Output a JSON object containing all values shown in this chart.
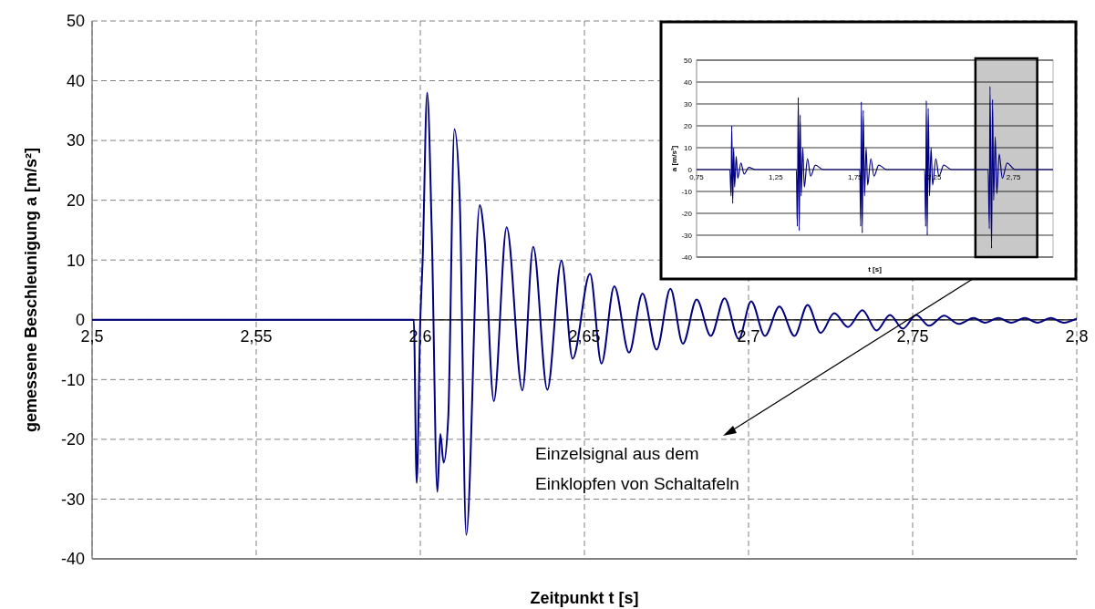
{
  "chart_data": [
    {
      "type": "line",
      "xlabel": "Zeitpunkt t [s]",
      "ylabel": "gemessene Beschleunigung a [m/s²]",
      "xlim": [
        2.5,
        2.8
      ],
      "xticks": [
        {
          "value": 2.5,
          "label": "2,5"
        },
        {
          "value": 2.55,
          "label": "2,55"
        },
        {
          "value": 2.6,
          "label": "2,6"
        },
        {
          "value": 2.65,
          "label": "2,65"
        },
        {
          "value": 2.7,
          "label": "2,7"
        },
        {
          "value": 2.75,
          "label": "2,75"
        },
        {
          "value": 2.8,
          "label": "2,8"
        }
      ],
      "ylim": [
        -40,
        50
      ],
      "yticks": [
        -40,
        -30,
        -20,
        -10,
        0,
        10,
        20,
        30,
        40,
        50
      ],
      "grid": true,
      "annotations": [
        "Einzelsignal aus dem\nEinklopfen von Schaltafeln"
      ],
      "series": [
        {
          "color": "#000080",
          "x": [
            2.5,
            2.598,
            2.5989,
            2.6,
            2.6007,
            2.6021,
            2.6035,
            2.6052,
            2.6061,
            2.6071,
            2.6085,
            2.6104,
            2.612,
            2.614,
            2.6181,
            2.6195,
            2.6224,
            2.6263,
            2.6311,
            2.6344,
            2.6387,
            2.643,
            2.6464,
            2.6517,
            2.6552,
            2.6591,
            2.6636,
            2.6677,
            2.672,
            2.6762,
            2.68,
            2.6842,
            2.6885,
            2.6927,
            2.697,
            2.7008,
            2.705,
            2.7094,
            2.714,
            2.718,
            2.722,
            2.7261,
            2.7303,
            2.7347,
            2.739,
            2.7431,
            2.747,
            2.7511,
            2.755,
            2.7596,
            2.764,
            2.7686,
            2.772,
            2.7761,
            2.78,
            2.7842,
            2.788,
            2.7921,
            2.796,
            2.8
          ],
          "values": [
            0,
            0,
            -27.3,
            0,
            9.8,
            38,
            14.5,
            -28.8,
            -19.1,
            -23.9,
            -16.5,
            31.9,
            20.3,
            -36,
            19.2,
            14,
            -13.6,
            15.5,
            -11.8,
            12.2,
            -11.7,
            9.9,
            -6.5,
            7.7,
            -7.3,
            5.6,
            -5.5,
            4.4,
            -5,
            5.2,
            -4,
            3.4,
            -2.7,
            3.6,
            -3.2,
            3.1,
            -2.7,
            2.2,
            -2.7,
            2.5,
            -2.2,
            1.1,
            -1.2,
            1.6,
            -1.8,
            0.8,
            -1.5,
            0.8,
            -1,
            0.7,
            -0.7,
            0.3,
            -0.5,
            0.3,
            -0.5,
            0.3,
            -0.5,
            0.3,
            -0.5,
            0.2
          ]
        }
      ]
    },
    {
      "type": "line",
      "xlabel": "t [s]",
      "ylabel": "a [m/s²]",
      "xlim": [
        0.75,
        3.0
      ],
      "xticks": [
        {
          "value": 0.75,
          "label": "0,75"
        },
        {
          "value": 1.25,
          "label": "1,25"
        },
        {
          "value": 1.75,
          "label": "1,75"
        },
        {
          "value": 2.25,
          "label": "2,25"
        },
        {
          "value": 2.75,
          "label": "2,75"
        }
      ],
      "ylim": [
        -40,
        50
      ],
      "yticks": [
        -40,
        -30,
        -20,
        -10,
        0,
        10,
        20,
        30,
        40,
        50
      ],
      "grid": "y",
      "bands": [
        {
          "axis": "x",
          "from": 2.51,
          "to": 2.9,
          "color": "#c8c8c8"
        }
      ],
      "series": [
        {
          "color": "#000080",
          "x": [
            0.75,
            0.96,
            0.968,
            0.972,
            0.978,
            0.984,
            0.99,
            1.0,
            1.01,
            1.03,
            1.05,
            1.08,
            1.12,
            1.38,
            1.386,
            1.392,
            1.398,
            1.404,
            1.41,
            1.42,
            1.43,
            1.45,
            1.47,
            1.5,
            1.55,
            1.78,
            1.786,
            1.79,
            1.796,
            1.802,
            1.81,
            1.82,
            1.83,
            1.85,
            1.87,
            1.9,
            1.95,
            2.19,
            2.196,
            2.2,
            2.206,
            2.212,
            2.22,
            2.23,
            2.24,
            2.26,
            2.28,
            2.31,
            2.36,
            2.59,
            2.598,
            2.602,
            2.612,
            2.618,
            2.625,
            2.635,
            2.645,
            2.66,
            2.68,
            2.71,
            2.76,
            3.0
          ],
          "values": [
            0,
            0,
            -12,
            20,
            -15.5,
            10,
            -8,
            6,
            -4,
            3,
            -2,
            1,
            0,
            0,
            -26,
            33,
            -28,
            25,
            -12,
            10,
            -8,
            5,
            -3,
            2,
            0,
            0,
            -26,
            31,
            -29,
            27,
            -12,
            10,
            -7,
            5,
            -3,
            2,
            0,
            0,
            -26,
            31.5,
            -30,
            28,
            -12,
            10,
            -7,
            5,
            -3,
            2,
            0,
            0,
            -27,
            38,
            -36,
            32,
            -14,
            15,
            -11,
            7,
            -4,
            3,
            0,
            0
          ]
        }
      ]
    }
  ]
}
